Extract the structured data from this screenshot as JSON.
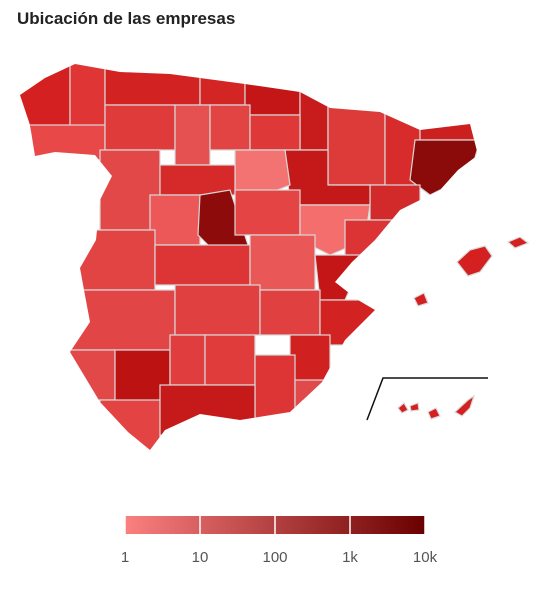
{
  "title": "Ubicación de las empresas",
  "legend": {
    "scale": "log",
    "range": [
      1,
      10000
    ],
    "ticks": [
      1,
      10,
      100,
      {
        "value": 1000,
        "label": "1k"
      },
      {
        "value": 10000,
        "label": "10k"
      }
    ],
    "colors": [
      "#fb8080",
      "#6a0000"
    ]
  }
}
